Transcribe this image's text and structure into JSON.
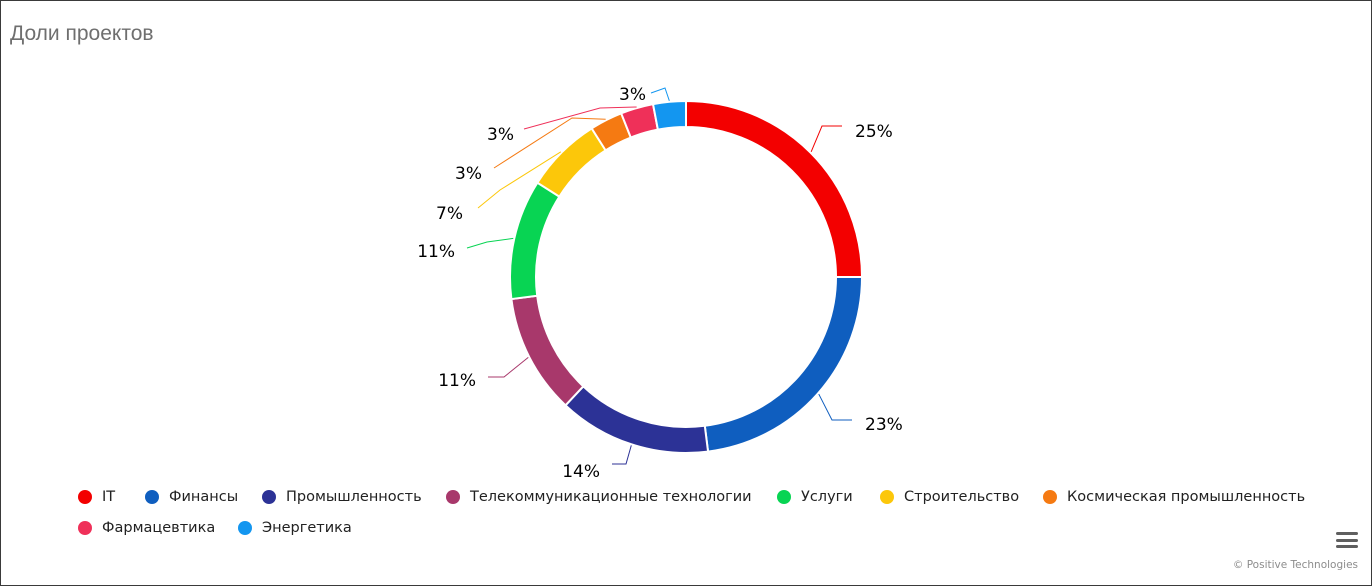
{
  "chart_data": {
    "type": "pie",
    "title": "Доли проектов",
    "donut": true,
    "legend_placement": "bottom",
    "series": [
      {
        "name": "IT",
        "value": 25,
        "label": "25%",
        "color": "#f30000"
      },
      {
        "name": "Финансы",
        "value": 23,
        "label": "23%",
        "color": "#0f5ebf"
      },
      {
        "name": "Промышленность",
        "value": 14,
        "label": "14%",
        "color": "#2c3296"
      },
      {
        "name": "Телекоммуникационные технологии",
        "value": 11,
        "label": "11%",
        "color": "#a8386b"
      },
      {
        "name": "Услуги",
        "value": 11,
        "label": "11%",
        "color": "#08d453"
      },
      {
        "name": "Строительство",
        "value": 7,
        "label": "7%",
        "color": "#fcc70a"
      },
      {
        "name": "Космическая промышленность",
        "value": 3,
        "label": "3%",
        "color": "#f57a12"
      },
      {
        "name": "Фармацевтика",
        "value": 3,
        "label": "3%",
        "color": "#ef3059"
      },
      {
        "name": "Энергетика",
        "value": 3,
        "label": "3%",
        "color": "#1396f0"
      }
    ]
  },
  "ui": {
    "menu_icon": "hamburger-menu-icon",
    "credits": "© Positive Technologies"
  }
}
